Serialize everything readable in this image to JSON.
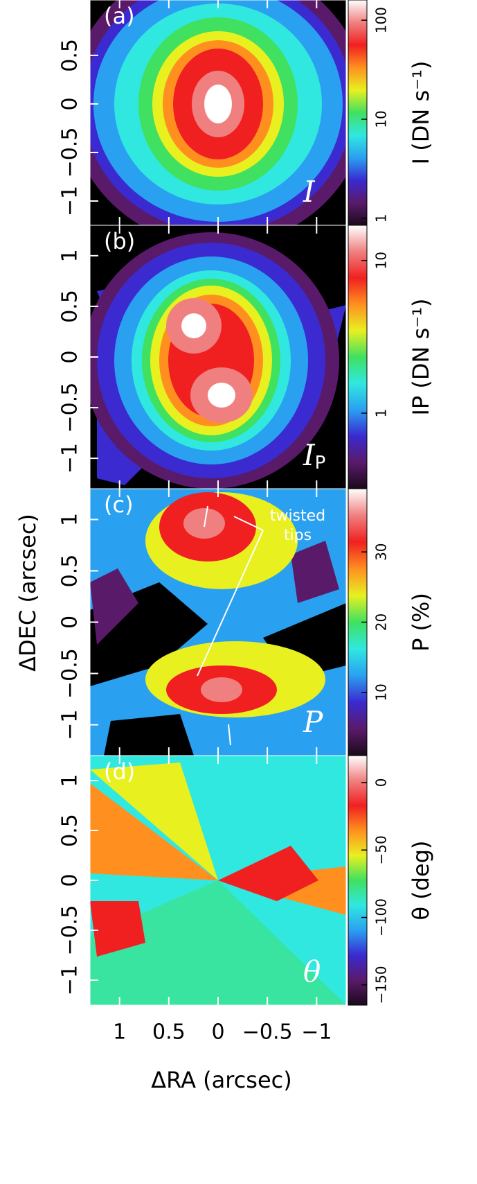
{
  "xlabel": "ΔRA (arcsec)",
  "ylabel": "ΔDEC (arcsec)",
  "chart_data": [
    {
      "type": "image",
      "panel_label": "(a)",
      "map_label": "I",
      "xlim": [
        1.3,
        -1.3
      ],
      "ylim": [
        -1.25,
        1.07
      ],
      "yticks": [
        0.5,
        0,
        {
          "value": -0.5,
          "label": "−0.5"
        },
        {
          "value": -1,
          "label": "−1"
        }
      ],
      "colorbar": {
        "label": "I (DN s⁻¹)",
        "log": true,
        "lim": [
          0.85,
          160
        ],
        "ticks": [
          1,
          10,
          100
        ],
        "colors": [
          "#1a0a1a",
          "#5a1a6a",
          "#3a2ad0",
          "#2aa0f0",
          "#30e8e0",
          "#40e060",
          "#e8f020",
          "#ff9020",
          "#f02020",
          "#f08080",
          "#ffffff"
        ]
      }
    },
    {
      "type": "image",
      "panel_label": "(b)",
      "map_label": "I",
      "map_label_sub": "P",
      "xlim": [
        1.3,
        -1.3
      ],
      "ylim": [
        -1.3,
        1.3
      ],
      "yticks": [
        1,
        0.5,
        0,
        {
          "value": -0.5,
          "label": "−0.5"
        },
        {
          "value": -1,
          "label": "−1"
        }
      ],
      "colorbar": {
        "label": "IP (DN s⁻¹)",
        "log": true,
        "lim": [
          0.32,
          17
        ],
        "ticks": [
          1,
          10
        ],
        "colors": [
          "#1a0a1a",
          "#5a1a6a",
          "#3a2ad0",
          "#2aa0f0",
          "#30e8e0",
          "#40e060",
          "#e8f020",
          "#ff9020",
          "#f02020",
          "#f08080",
          "#ffffff"
        ]
      }
    },
    {
      "type": "image",
      "panel_label": "(c)",
      "map_label": "P",
      "annotation": [
        "twisted",
        "tips"
      ],
      "xlim": [
        1.3,
        -1.3
      ],
      "ylim": [
        -1.3,
        1.3
      ],
      "yticks": [
        1,
        0.5,
        0,
        {
          "value": -0.5,
          "label": "−0.5"
        },
        {
          "value": -1,
          "label": "−1"
        }
      ],
      "colorbar": {
        "label": "P (%)",
        "log": false,
        "lim": [
          1,
          39
        ],
        "ticks": [
          10,
          20,
          30
        ],
        "colors": [
          "#1a0a1a",
          "#5a1a6a",
          "#3a2ad0",
          "#2aa0f0",
          "#30e8e0",
          "#40e060",
          "#e8f020",
          "#ff9020",
          "#f02020",
          "#f08080",
          "#ffffff"
        ]
      }
    },
    {
      "type": "image",
      "panel_label": "(d)",
      "map_label": "θ",
      "xlim": [
        1.3,
        -1.3
      ],
      "ylim": [
        -1.25,
        1.25
      ],
      "xticks": [
        1,
        0.5,
        0,
        {
          "value": -0.5,
          "label": "−0.5"
        },
        {
          "value": -1,
          "label": "−1"
        }
      ],
      "yticks": [
        1,
        0.5,
        0,
        {
          "value": -0.5,
          "label": "−0.5"
        },
        {
          "value": -1,
          "label": "−1"
        }
      ],
      "colorbar": {
        "label": "θ (deg)",
        "log": false,
        "lim": [
          -165,
          20
        ],
        "ticks": [
          0,
          {
            "value": -50,
            "label": "−50"
          },
          {
            "value": -100,
            "label": "−100"
          },
          {
            "value": -150,
            "label": "−150"
          }
        ],
        "colors": [
          "#1a0a1a",
          "#5a1a6a",
          "#3a2ad0",
          "#2aa0f0",
          "#30e8e0",
          "#40e060",
          "#e8f020",
          "#ff9020",
          "#f02020",
          "#f08080",
          "#ffffff"
        ]
      }
    }
  ]
}
